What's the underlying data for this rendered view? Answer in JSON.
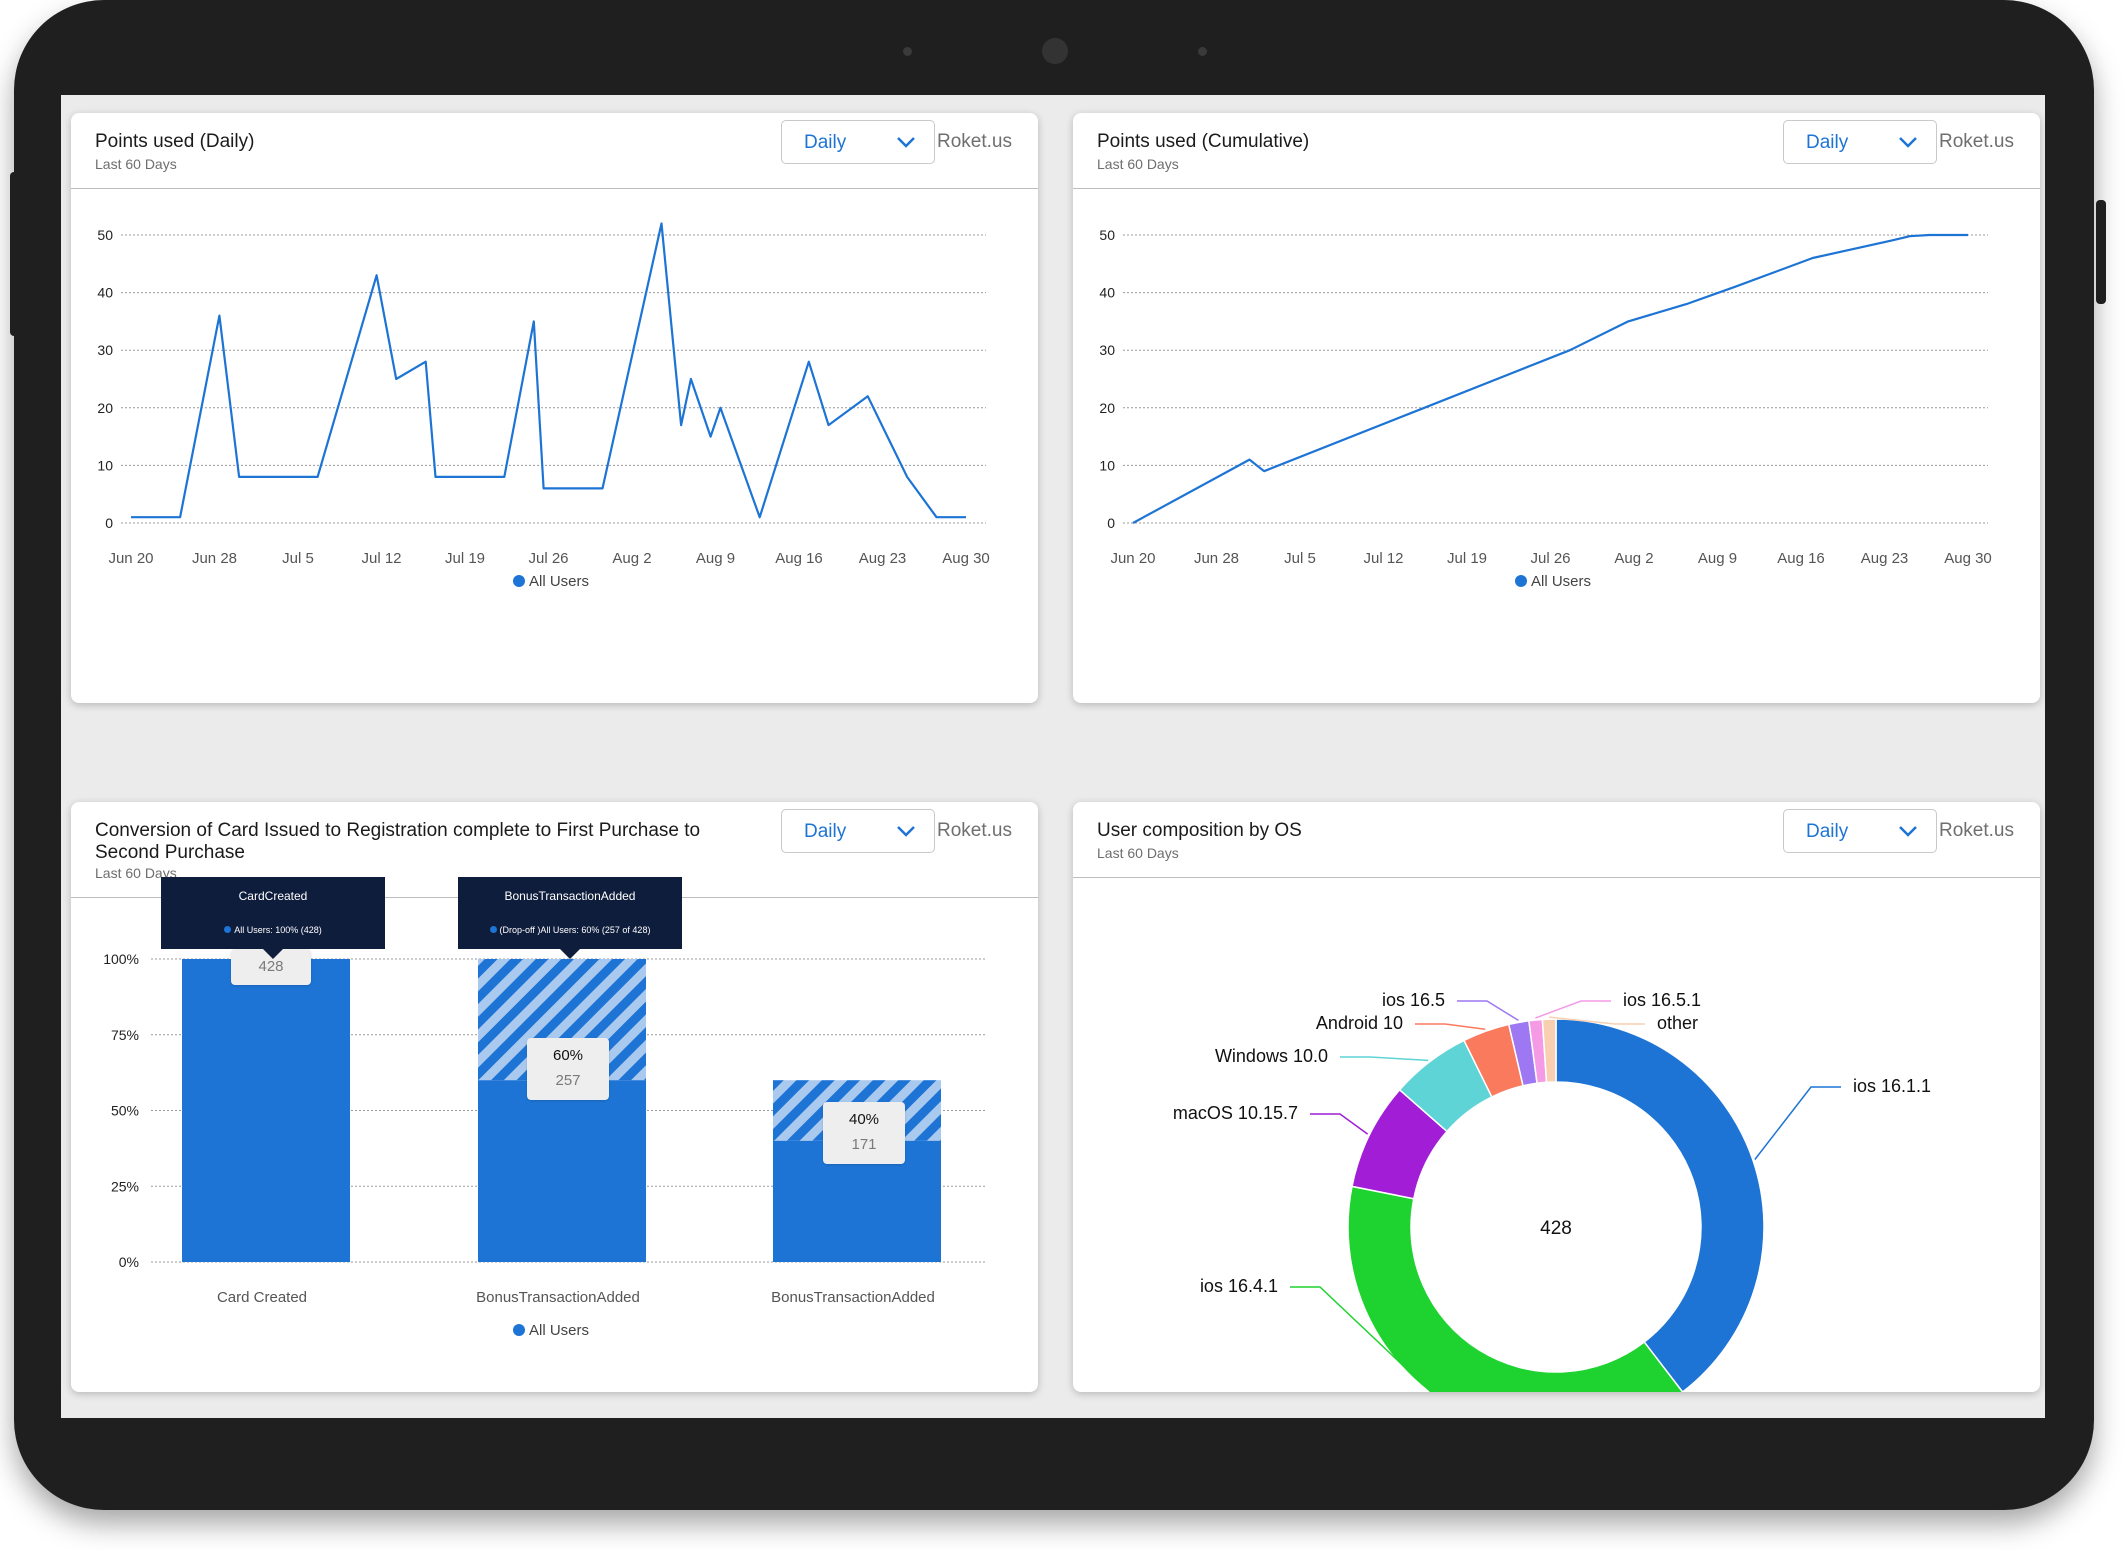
{
  "cards": [
    {
      "title": "Points used (Daily)",
      "subtitle": "Last 60 Days",
      "dropdown": "Daily",
      "brand": "Roket.us"
    },
    {
      "title": "Points used (Cumulative)",
      "subtitle": "Last 60 Days",
      "dropdown": "Daily",
      "brand": "Roket.us"
    },
    {
      "title": "Conversion of Card Issued to Registration complete to First Purchase to Second Purchase",
      "subtitle": "Last 60 Days",
      "dropdown": "Daily",
      "brand": "Roket.us"
    },
    {
      "title": "User composition by OS",
      "subtitle": "Last 60 Days",
      "dropdown": "Daily",
      "brand": "Roket.us"
    }
  ],
  "funnel": {
    "tooltips": [
      {
        "title": "CardCreated",
        "body": "All Users: 100% (428)"
      },
      {
        "title": "BonusTransactionAdded",
        "body": "(Drop-off )All Users: 60% (257 of 428)"
      }
    ],
    "badges": [
      {
        "pct": "",
        "count": "428"
      },
      {
        "pct": "60%",
        "count": "257"
      },
      {
        "pct": "40%",
        "count": "171"
      }
    ]
  },
  "chart_data": [
    {
      "type": "line",
      "title": "Points used (Daily)",
      "x_ticks": [
        "Jun 20",
        "Jun 28",
        "Jul 5",
        "Jul 12",
        "Jul 19",
        "Jul 26",
        "Aug 2",
        "Aug 9",
        "Aug 16",
        "Aug 23",
        "Aug 30"
      ],
      "y_ticks": [
        "0",
        "10",
        "20",
        "30",
        "40",
        "50"
      ],
      "ylim": [
        0,
        50
      ],
      "legend": "All Users",
      "series": [
        {
          "name": "All Users",
          "color": "#1d74d5",
          "points": [
            [
              0,
              1
            ],
            [
              5,
              1
            ],
            [
              9,
              36
            ],
            [
              11,
              8
            ],
            [
              19,
              8
            ],
            [
              25,
              43
            ],
            [
              27,
              25
            ],
            [
              30,
              28
            ],
            [
              31,
              8
            ],
            [
              38,
              8
            ],
            [
              41,
              35
            ],
            [
              42,
              6
            ],
            [
              48,
              6
            ],
            [
              54,
              52
            ],
            [
              56,
              17
            ],
            [
              57,
              25
            ],
            [
              59,
              15
            ],
            [
              60,
              20
            ],
            [
              64,
              1
            ],
            [
              69,
              28
            ],
            [
              71,
              17
            ],
            [
              75,
              22
            ],
            [
              79,
              8
            ],
            [
              82,
              1
            ],
            [
              85,
              1
            ]
          ]
        }
      ]
    },
    {
      "type": "line",
      "title": "Points used (Cumulative)",
      "x_ticks": [
        "Jun 20",
        "Jun 28",
        "Jul 5",
        "Jul 12",
        "Jul 19",
        "Jul 26",
        "Aug 2",
        "Aug 9",
        "Aug 16",
        "Aug 23",
        "Aug 30"
      ],
      "y_ticks": [
        "0",
        "10",
        "20",
        "30",
        "40",
        "50"
      ],
      "ylim": [
        0,
        50
      ],
      "legend": "All Users",
      "series": [
        {
          "name": "All Users",
          "color": "#1d74d5",
          "points": [
            [
              0,
              0
            ],
            [
              12,
              11
            ],
            [
              13.5,
              9
            ],
            [
              30,
              20
            ],
            [
              45,
              30
            ],
            [
              51,
              35
            ],
            [
              57,
              38
            ],
            [
              62,
              41
            ],
            [
              70,
              46
            ],
            [
              78,
              49
            ],
            [
              80,
              49.8
            ],
            [
              82,
              50
            ],
            [
              84,
              50
            ],
            [
              86,
              50
            ]
          ]
        }
      ]
    },
    {
      "type": "bar",
      "title": "Conversion of Card Issued to Registration complete to First Purchase to Second Purchase",
      "categories": [
        "Card Created",
        "BonusTransactionAdded",
        "BonusTransactionAdded"
      ],
      "series": [
        {
          "name": "All Users",
          "values": [
            100,
            60,
            40
          ]
        }
      ],
      "counts": [
        428,
        257,
        171
      ],
      "y_ticks": [
        "0%",
        "25%",
        "50%",
        "75%",
        "100%"
      ],
      "ylim": [
        0,
        100
      ],
      "legend": "All Users",
      "color": "#1d74d5"
    },
    {
      "type": "pie",
      "title": "User composition by OS",
      "total": "428",
      "slices": [
        {
          "label": "ios 16.1.1",
          "value": 38,
          "color": "#1d74d5"
        },
        {
          "label": "ios 16.4.1",
          "value": 37,
          "color": "#1ed32f"
        },
        {
          "label": "macOS 10.15.7",
          "value": 8,
          "color": "#a11dd6"
        },
        {
          "label": "Windows 10.0",
          "value": 6,
          "color": "#5ed4d6"
        },
        {
          "label": "Android 10",
          "value": 3.5,
          "color": "#fa7a5e"
        },
        {
          "label": "ios 16.5",
          "value": 1.5,
          "color": "#9e77f2"
        },
        {
          "label": "ios 16.5.1",
          "value": 1,
          "color": "#f59be6"
        },
        {
          "label": "other",
          "value": 1,
          "color": "#f8cfb1"
        }
      ]
    }
  ]
}
